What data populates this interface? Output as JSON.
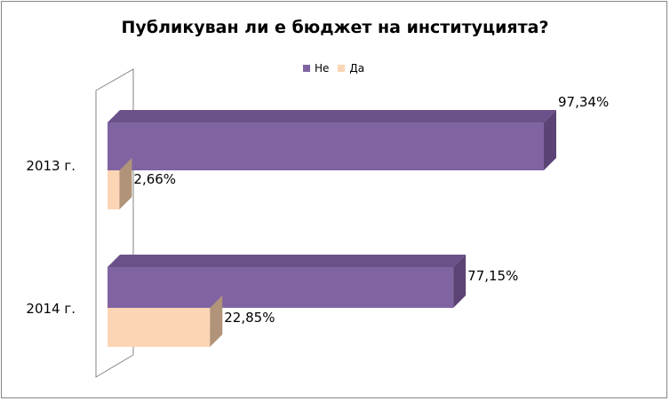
{
  "chart_data": {
    "type": "bar",
    "orientation": "horizontal",
    "title": "Публикуван ли е бюджет на институцията?",
    "categories": [
      "2013 г.",
      "2014 г."
    ],
    "series": [
      {
        "name": "Не",
        "values": [
          97.34,
          77.15
        ],
        "labels": [
          "97,34%",
          "77,15%"
        ]
      },
      {
        "name": "Да",
        "values": [
          2.66,
          22.85
        ],
        "labels": [
          "2,66%",
          "22,85%"
        ]
      }
    ],
    "xlim": [
      0,
      100
    ],
    "grid": false,
    "legend_position": "top"
  },
  "colors": {
    "Не": "#8064a2",
    "Да": "#fcd5b5"
  }
}
